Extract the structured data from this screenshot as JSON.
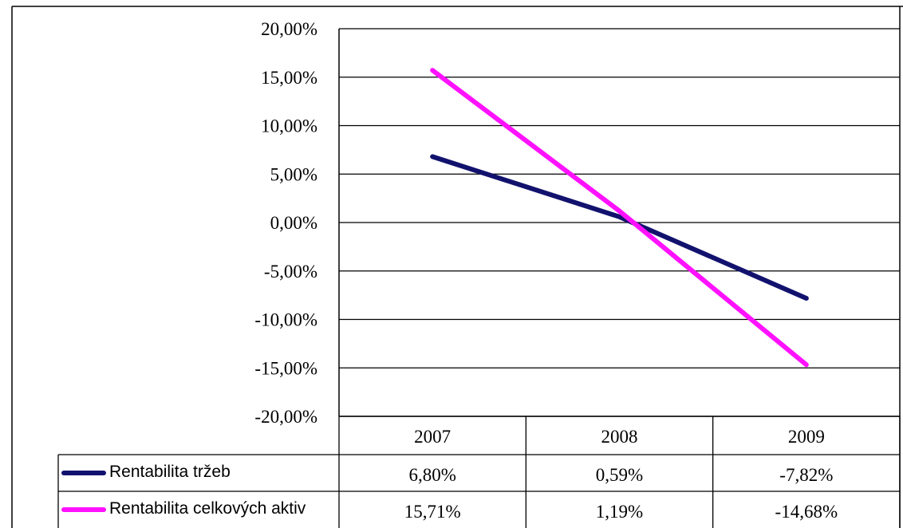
{
  "chart_data": {
    "type": "line",
    "categories": [
      "2007",
      "2008",
      "2009"
    ],
    "series": [
      {
        "name": "Rentabilita tržeb",
        "values": [
          6.8,
          0.59,
          -7.82
        ],
        "labels": [
          "6,80%",
          "0,59%",
          "-7,82%"
        ],
        "color": "#12126e"
      },
      {
        "name": "Rentabilita celkových aktiv",
        "values": [
          15.71,
          1.19,
          -14.68
        ],
        "labels": [
          "15,71%",
          "1,19%",
          "-14,68%"
        ],
        "color": "#ff11ff"
      }
    ],
    "y_ticks": [
      20,
      15,
      10,
      5,
      0,
      -5,
      -10,
      -15,
      -20
    ],
    "y_tick_labels": [
      "20,00%",
      "15,00%",
      "10,00%",
      "5,00%",
      "0,00%",
      "-5,00%",
      "-10,00%",
      "-15,00%",
      "-20,00%"
    ],
    "ylim": [
      -20,
      20
    ],
    "grid": true,
    "legend": "data-table-left",
    "title": "",
    "xlabel": "",
    "ylabel": ""
  }
}
